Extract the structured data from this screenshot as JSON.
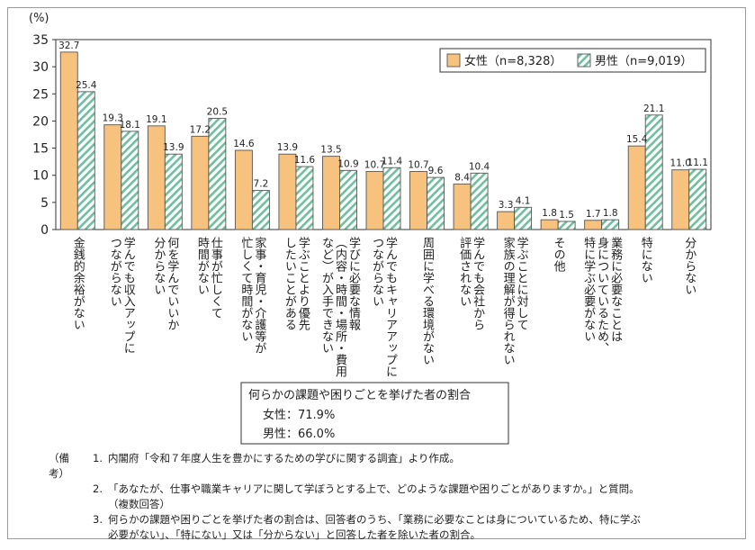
{
  "chart_data": {
    "type": "bar",
    "unit_label": "(%)",
    "ylim": [
      0,
      35
    ],
    "yticks": [
      0,
      5,
      10,
      15,
      20,
      25,
      30,
      35
    ],
    "legend_placement": "top-right",
    "colors": {
      "female": "#f7c27e",
      "female_stroke": "#555555",
      "male_fill": "#ffffff",
      "male_stripe": "#6fbe9f"
    },
    "categories": [
      "金銭的余裕がない",
      "学んでも収入アップにつながらない",
      "何を学んでいいか分からない",
      "仕事が忙しくて時間がない",
      "家事・育児・介護等が忙しくて時間がない",
      "学ぶことより優先したいことがある",
      "学びに必要な情報（内容・時間・場所・費用など）が入手できない",
      "学んでもキャリアアップにつながらない",
      "周囲に学べる環境がない",
      "学んでも会社から評価されない",
      "学ぶことに対して家族の理解が得られない",
      "その他",
      "業務に必要なことは身についているため、特に学ぶ必要がない",
      "特にない",
      "分からない"
    ],
    "category_lines": [
      [
        "金銭的余裕がない"
      ],
      [
        "学んでも収入アップに",
        "つながらない"
      ],
      [
        "何を学んでいいか",
        "分からない"
      ],
      [
        "仕事が忙しくて",
        "時間がない"
      ],
      [
        "家事・育児・介護等が",
        "忙しくて時間がない"
      ],
      [
        "学ぶことより優先",
        "したいことがある"
      ],
      [
        "学びに必要な情報",
        "（内容・時間・場所・費用",
        "など）が入手できない"
      ],
      [
        "学んでもキャリアアップに",
        "つながらない"
      ],
      [
        "周囲に学べる環境がない"
      ],
      [
        "学んでも会社から",
        "評価されない"
      ],
      [
        "学ぶことに対して",
        "家族の理解が得られない"
      ],
      [
        "その他"
      ],
      [
        "業務に必要なことは",
        "身についているため、",
        "特に学ぶ必要がない"
      ],
      [
        "特にない"
      ],
      [
        "分からない"
      ]
    ],
    "series": [
      {
        "name": "女性（n=8,328）",
        "values": [
          32.7,
          19.3,
          19.1,
          17.2,
          14.6,
          13.9,
          13.5,
          10.7,
          10.7,
          8.4,
          3.3,
          1.8,
          1.7,
          15.4,
          11.0
        ]
      },
      {
        "name": "男性（n=9,019）",
        "values": [
          25.4,
          18.1,
          13.9,
          20.5,
          7.2,
          11.6,
          10.9,
          11.4,
          9.6,
          10.4,
          4.1,
          1.5,
          1.8,
          21.1,
          11.1
        ]
      }
    ]
  },
  "summary_box": {
    "title": "何らかの課題や困りごとを挙げた者の割合",
    "female": "女性：71.9%",
    "male": "男性：66.0%"
  },
  "notes": {
    "header": "（備考）",
    "items": [
      {
        "num": "1.",
        "text": "内閣府「令和７年度人生を豊かにするための学びに関する調査」より作成。"
      },
      {
        "num": "2.",
        "text": "「あなたが、仕事や職業キャリアに関して学ぼうとする上で、どのような課題や困りごとがありますか。」と質問。"
      },
      {
        "num": "",
        "text": "（複数回答）"
      },
      {
        "num": "3.",
        "text": "何らかの課題や困りごとを挙げた者の割合は、回答者のうち、「業務に必要なことは身についているため、特に学ぶ"
      },
      {
        "num": "",
        "text": "必要がない」、「特にない」又は「分からない」と回答した者を除いた者の割合。"
      }
    ]
  }
}
